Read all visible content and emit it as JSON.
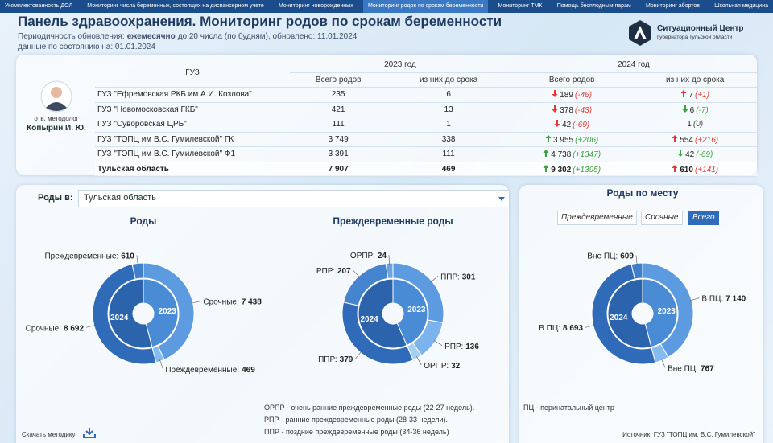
{
  "nav": {
    "tabs": [
      "Укомплектованность ДОЛ",
      "Мониторинг числа беременных, состоящих на диспансерном учете",
      "Мониторинг новорожденных",
      "Мониторинг родов по срокам беременности",
      "Мониторинг ТМК",
      "Помощь бесплодным парам",
      "Мониторинг абортов",
      "Школьная медицина"
    ],
    "active": 3
  },
  "header": {
    "title": "Панель здравоохранения. Мониторинг родов по срокам беременности",
    "period_label": "Периодичность обновления:",
    "period_value": "ежемесячно",
    "period_rest": "до 20 числа (по будням), обновлено: 11.01.2024",
    "as_of": "данные по состоянию на: 01.01.2024",
    "logo_title": "Ситуационный Центр",
    "logo_subtitle": "Губернатора Тульской области"
  },
  "person": {
    "role": "отв. методолог",
    "name": "Копырин И. Ю."
  },
  "table": {
    "col_name": "ГУЗ",
    "year_2023": "2023 год",
    "year_2024": "2024 год",
    "sub": [
      "Всего родов",
      "из них до срока",
      "Всего родов",
      "из них до срока"
    ],
    "rows": [
      {
        "name": "ГУЗ \"Ефремовская РКБ им А.И. Козлова\"",
        "y2023": [
          "235",
          "6"
        ],
        "y2024": [
          {
            "value": "189",
            "delta": "(-46)",
            "arrow": "down",
            "color": "#e53935"
          },
          {
            "value": "7",
            "delta": "(+1)",
            "arrow": "up",
            "color": "#e53935"
          }
        ]
      },
      {
        "name": "ГУЗ \"Новомосковская ГКБ\"",
        "y2023": [
          "421",
          "13"
        ],
        "y2024": [
          {
            "value": "378",
            "delta": "(-43)",
            "arrow": "down",
            "color": "#e53935"
          },
          {
            "value": "6",
            "delta": "(-7)",
            "arrow": "down",
            "color": "#3aa23a"
          }
        ]
      },
      {
        "name": "ГУЗ \"Суворовская ЦРБ\"",
        "y2023": [
          "111",
          "1"
        ],
        "y2024": [
          {
            "value": "42",
            "delta": "(-69)",
            "arrow": "down",
            "color": "#e53935"
          },
          {
            "value": "1",
            "delta": "(0)",
            "arrow": null,
            "color": "#444444"
          }
        ]
      },
      {
        "name": "ГУЗ \"ТОПЦ им В.С. Гумилевской\" ГК",
        "y2023": [
          "3 749",
          "338"
        ],
        "y2024": [
          {
            "value": "3 955",
            "delta": "(+206)",
            "arrow": "up",
            "color": "#3aa23a"
          },
          {
            "value": "554",
            "delta": "(+216)",
            "arrow": "up",
            "color": "#e53935"
          }
        ]
      },
      {
        "name": "ГУЗ \"ТОПЦ им В.С. Гумилевской\" Ф1",
        "y2023": [
          "3 391",
          "111"
        ],
        "y2024": [
          {
            "value": "4 738",
            "delta": "(+1347)",
            "arrow": "up",
            "color": "#3aa23a"
          },
          {
            "value": "42",
            "delta": "(-69)",
            "arrow": "down",
            "color": "#3aa23a"
          }
        ]
      },
      {
        "name": "Тульская область",
        "y2023": [
          "7 907",
          "469"
        ],
        "y2024": [
          {
            "value": "9 302",
            "delta": "(+1395)",
            "arrow": "up",
            "color": "#3aa23a"
          },
          {
            "value": "610",
            "delta": "(+141)",
            "arrow": "up",
            "color": "#e53935"
          }
        ],
        "total": true
      }
    ]
  },
  "filter": {
    "label": "Роды в:",
    "value": "Тульская область"
  },
  "place_filter": {
    "options": [
      "Преждевременные",
      "Срочные",
      "Всего"
    ],
    "active": 2
  },
  "chart_data": [
    {
      "type": "sunburst",
      "title": "Роды",
      "groups": [
        {
          "name": "2023",
          "color": "#4a8bd6",
          "labels": [
            "Срочные:",
            "Преждевременные:"
          ],
          "values": [
            7438,
            469
          ],
          "value_labels": [
            "7 438",
            "469"
          ],
          "colors": [
            "#5d9be0",
            "#86bbef"
          ]
        },
        {
          "name": "2024",
          "color": "#2b63ad",
          "labels": [
            "Срочные:",
            "Преждевременные:"
          ],
          "values": [
            8692,
            610
          ],
          "value_labels": [
            "8 692",
            "610"
          ],
          "colors": [
            "#2f6bb8",
            "#3f7fcb"
          ]
        }
      ]
    },
    {
      "type": "sunburst",
      "title": "Преждевременные роды",
      "groups": [
        {
          "name": "2023",
          "color": "#4a8bd6",
          "labels": [
            "ППР:",
            "РПР:",
            "ОРПР:"
          ],
          "values": [
            301,
            136,
            32
          ],
          "value_labels": [
            "301",
            "136",
            "32"
          ],
          "colors": [
            "#5d9be0",
            "#7db3ec",
            "#a6cdf3"
          ]
        },
        {
          "name": "2024",
          "color": "#2b63ad",
          "labels": [
            "ППР:",
            "РПР:",
            "ОРПР:"
          ],
          "values": [
            379,
            207,
            24
          ],
          "value_labels": [
            "379",
            "207",
            "24"
          ],
          "colors": [
            "#2f6bb8",
            "#4585cf",
            "#6ea3de"
          ]
        }
      ]
    },
    {
      "type": "sunburst",
      "title": "Роды по месту",
      "groups": [
        {
          "name": "2023",
          "color": "#4a8bd6",
          "labels": [
            "В ПЦ:",
            "Вне ПЦ:"
          ],
          "values": [
            7140,
            767
          ],
          "value_labels": [
            "7 140",
            "767"
          ],
          "colors": [
            "#5d9be0",
            "#86bbef"
          ]
        },
        {
          "name": "2024",
          "color": "#2b63ad",
          "labels": [
            "В ПЦ:",
            "Вне ПЦ:"
          ],
          "values": [
            8693,
            609
          ],
          "value_labels": [
            "8 693",
            "609"
          ],
          "colors": [
            "#2f6bb8",
            "#3f7fcb"
          ]
        }
      ]
    }
  ],
  "notes": {
    "orpr": "ОРПР - очень ранние преждевременные роды (22-27 недель).",
    "rpr": "РПР - ранние преждевременные роды (28-33 недели).",
    "ppr": "ППР - поздние преждевременные роды (34-36 недель)",
    "pc": "ПЦ - перинатальный центр",
    "download": "Скачать методику:",
    "source": "Источник: ГУЗ \"ТОПЦ им. В.С. Гумилевской\""
  }
}
